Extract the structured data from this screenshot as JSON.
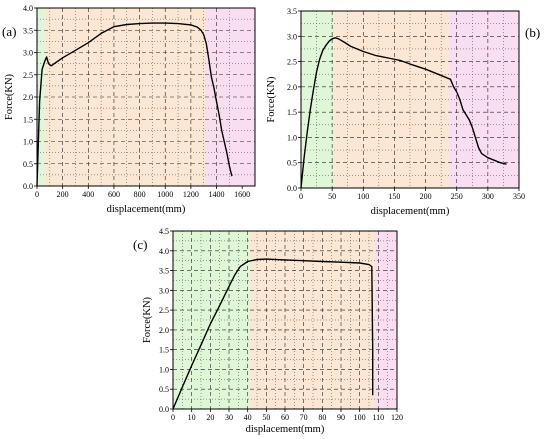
{
  "chart_data": [
    {
      "type": "line",
      "panel_label": "(a)",
      "xlabel": "displacement(mm)",
      "ylabel": "Force(KN)",
      "xlim": [
        0,
        1700
      ],
      "ylim": [
        0,
        4.0
      ],
      "xticks": [
        0,
        200,
        400,
        600,
        800,
        1000,
        1200,
        1400,
        1600
      ],
      "yticks": [
        0.0,
        0.5,
        1.0,
        1.5,
        2.0,
        2.5,
        3.0,
        3.5,
        4.0
      ],
      "ytick_labels": [
        "0.0",
        "0.5",
        "1.0",
        "1.5",
        "2.0",
        "2.5",
        "3.0",
        "3.5",
        "4.0"
      ],
      "grid": true,
      "regions": [
        {
          "from": 0,
          "to": 60,
          "color": "#dff7d6"
        },
        {
          "from": 60,
          "to": 1310,
          "color": "#fbe7d3"
        },
        {
          "from": 1310,
          "to": 1700,
          "color": "#f8def0"
        }
      ],
      "series": [
        {
          "x": [
            0,
            20,
            40,
            60,
            75,
            90,
            110,
            150,
            200,
            300,
            400,
            500,
            600,
            700,
            800,
            900,
            1000,
            1100,
            1200,
            1250,
            1280,
            1300,
            1320,
            1340,
            1360,
            1380,
            1400,
            1420,
            1440,
            1460,
            1480,
            1500,
            1520
          ],
          "y": [
            0,
            1.9,
            2.62,
            2.8,
            2.9,
            2.75,
            2.7,
            2.78,
            2.88,
            3.05,
            3.22,
            3.43,
            3.58,
            3.63,
            3.65,
            3.66,
            3.66,
            3.65,
            3.62,
            3.57,
            3.5,
            3.4,
            3.2,
            2.85,
            2.45,
            2.2,
            1.9,
            1.6,
            1.25,
            1.0,
            0.75,
            0.45,
            0.22
          ],
          "color": "#000000"
        }
      ]
    },
    {
      "type": "line",
      "panel_label": "(b)",
      "xlabel": "displacement(mm)",
      "ylabel": "Force(KN)",
      "xlim": [
        0,
        350
      ],
      "ylim": [
        0,
        3.5
      ],
      "xticks": [
        0,
        50,
        100,
        150,
        200,
        250,
        300,
        350
      ],
      "yticks": [
        0.0,
        0.5,
        1.0,
        1.5,
        2.0,
        2.5,
        3.0,
        3.5
      ],
      "ytick_labels": [
        "0.0",
        "0.5",
        "1.0",
        "1.5",
        "2.0",
        "2.5",
        "3.0",
        "3.5"
      ],
      "grid": true,
      "regions": [
        {
          "from": 0,
          "to": 52,
          "color": "#dff7d6"
        },
        {
          "from": 52,
          "to": 237,
          "color": "#fbe7d3"
        },
        {
          "from": 237,
          "to": 350,
          "color": "#f8def0"
        }
      ],
      "series": [
        {
          "x": [
            0,
            5,
            10,
            15,
            20,
            25,
            30,
            35,
            40,
            45,
            50,
            55,
            60,
            70,
            80,
            100,
            120,
            140,
            160,
            180,
            200,
            220,
            240,
            245,
            250,
            255,
            260,
            265,
            270,
            275,
            280,
            285,
            290,
            300,
            310,
            320,
            330
          ],
          "y": [
            0,
            0.6,
            1.1,
            1.55,
            1.95,
            2.3,
            2.55,
            2.72,
            2.82,
            2.9,
            2.95,
            2.97,
            2.95,
            2.88,
            2.8,
            2.7,
            2.62,
            2.57,
            2.52,
            2.43,
            2.35,
            2.25,
            2.15,
            2.0,
            1.9,
            1.75,
            1.55,
            1.45,
            1.35,
            1.2,
            1.0,
            0.8,
            0.68,
            0.6,
            0.55,
            0.5,
            0.47
          ],
          "color": "#000000"
        }
      ]
    },
    {
      "type": "line",
      "panel_label": "(c)",
      "xlabel": "displacement(mm)",
      "ylabel": "Force(KN)",
      "xlim": [
        0,
        120
      ],
      "ylim": [
        0,
        4.5
      ],
      "xticks": [
        0,
        10,
        20,
        30,
        40,
        50,
        60,
        70,
        80,
        90,
        100,
        110,
        120
      ],
      "yticks": [
        0.0,
        0.5,
        1.0,
        1.5,
        2.0,
        2.5,
        3.0,
        3.5,
        4.0,
        4.5
      ],
      "ytick_labels": [
        "0.0",
        "0.5",
        "1.0",
        "1.5",
        "2.0",
        "2.5",
        "3.0",
        "3.5",
        "4.0",
        "4.5"
      ],
      "grid": true,
      "regions": [
        {
          "from": 0,
          "to": 41,
          "color": "#dff7d6"
        },
        {
          "from": 41,
          "to": 108,
          "color": "#fbe7d3"
        },
        {
          "from": 108,
          "to": 120,
          "color": "#f8def0"
        }
      ],
      "series": [
        {
          "x": [
            0,
            5,
            10,
            15,
            20,
            25,
            30,
            33,
            36,
            40,
            45,
            50,
            60,
            70,
            80,
            90,
            100,
            105,
            106.5,
            107,
            107
          ],
          "y": [
            0,
            0.55,
            1.1,
            1.62,
            2.15,
            2.62,
            3.1,
            3.38,
            3.6,
            3.73,
            3.78,
            3.79,
            3.77,
            3.75,
            3.73,
            3.71,
            3.69,
            3.65,
            3.6,
            1.5,
            0.35
          ],
          "color": "#000000"
        }
      ]
    }
  ]
}
